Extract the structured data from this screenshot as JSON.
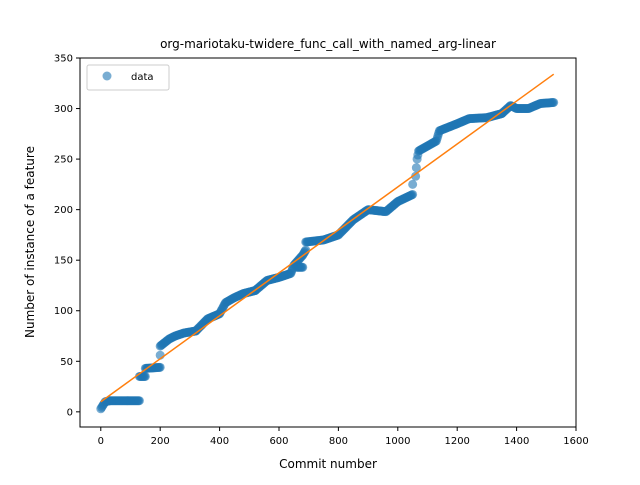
{
  "chart_data": {
    "type": "scatter",
    "title": "org-mariotaku-twidere_func_call_with_named_arg-linear",
    "xlabel": "Commit number",
    "ylabel": "Number of instance of a feature",
    "xlim": [
      -70,
      1600
    ],
    "ylim": [
      -15,
      350
    ],
    "xticks": [
      0,
      200,
      400,
      600,
      800,
      1000,
      1200,
      1400,
      1600
    ],
    "yticks": [
      0,
      50,
      100,
      150,
      200,
      250,
      300,
      350
    ],
    "grid": false,
    "legend_position": "top-left",
    "legend": [
      "data"
    ],
    "colors": {
      "data": "#1f77b4",
      "fit": "#ff7f0e"
    },
    "series": [
      {
        "name": "data",
        "kind": "points",
        "segments": [
          [
            [
              0,
              3
            ],
            [
              15,
              10
            ],
            [
              30,
              11
            ]
          ],
          [
            [
              30,
              11
            ],
            [
              130,
              11
            ]
          ],
          [
            [
              130,
              35
            ],
            [
              150,
              35
            ]
          ],
          [
            [
              150,
              43
            ],
            [
              200,
              44
            ]
          ],
          [
            [
              200,
              56
            ]
          ],
          [
            [
              200,
              65
            ],
            [
              230,
              72
            ],
            [
              250,
              75
            ],
            [
              280,
              78
            ],
            [
              320,
              80
            ]
          ],
          [
            [
              320,
              80
            ],
            [
              360,
              92
            ],
            [
              400,
              97
            ],
            [
              420,
              108
            ],
            [
              450,
              113
            ],
            [
              480,
              117
            ],
            [
              520,
              120
            ]
          ],
          [
            [
              520,
              120
            ],
            [
              560,
              130
            ],
            [
              600,
              133
            ],
            [
              640,
              137
            ],
            [
              650,
              145
            ],
            [
              680,
              155
            ],
            [
              690,
              160
            ]
          ],
          [
            [
              660,
              143
            ],
            [
              680,
              143
            ]
          ],
          [
            [
              690,
              168
            ],
            [
              750,
              170
            ],
            [
              800,
              175
            ],
            [
              850,
              190
            ],
            [
              900,
              200
            ],
            [
              960,
              198
            ],
            [
              1000,
              208
            ],
            [
              1050,
              215
            ]
          ],
          [
            [
              1050,
              225
            ]
          ],
          [
            [
              1060,
              233
            ],
            [
              1065,
              250
            ],
            [
              1070,
              258
            ],
            [
              1100,
              263
            ],
            [
              1130,
              268
            ],
            [
              1140,
              278
            ],
            [
              1200,
              285
            ],
            [
              1240,
              290
            ],
            [
              1300,
              291
            ],
            [
              1350,
              295
            ]
          ],
          [
            [
              1350,
              295
            ],
            [
              1380,
              303
            ],
            [
              1400,
              300
            ],
            [
              1440,
              300
            ],
            [
              1480,
              305
            ],
            [
              1525,
              306
            ]
          ]
        ]
      },
      {
        "name": "fit",
        "kind": "line",
        "x": [
          0,
          1525
        ],
        "y": [
          10,
          334
        ]
      }
    ]
  }
}
